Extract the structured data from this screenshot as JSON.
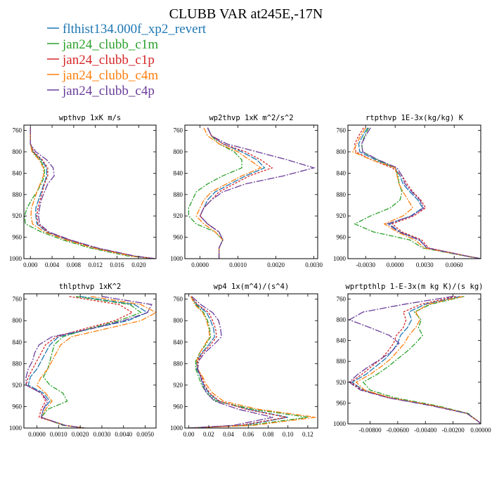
{
  "figure": {
    "title": "CLUBB VAR at245E,-17N",
    "legend": [
      {
        "name": "flthist134.000f_xp2_revert",
        "color": "#1f77b4"
      },
      {
        "name": "jan24_clubb_c1m",
        "color": "#2ca02c"
      },
      {
        "name": "jan24_clubb_c1p",
        "color": "#d62728"
      },
      {
        "name": "jan24_clubb_c4m",
        "color": "#ff7f0e"
      },
      {
        "name": "jan24_clubb_c4p",
        "color": "#6a3d9a"
      }
    ]
  },
  "chart_data": [
    {
      "type": "line",
      "title": "wpthvp 1xK m/s",
      "xlim": [
        -0.0012,
        0.0232
      ],
      "xticks": [
        0,
        0.004,
        0.008,
        0.012,
        0.016,
        0.02
      ],
      "xtick_labels": [
        "0.000",
        "0.004",
        "0.008",
        "0.012",
        "0.016",
        "0.020"
      ],
      "ylim": [
        750,
        1000
      ],
      "yticks": [
        760,
        800,
        840,
        880,
        920,
        960,
        1000
      ],
      "ytick_labels": [
        "760",
        "800",
        "840",
        "880",
        "920",
        "960",
        "1000"
      ],
      "levels": [
        755,
        770,
        785,
        800,
        815,
        830,
        845,
        860,
        875,
        890,
        905,
        920,
        935,
        950,
        965,
        980,
        995,
        1000
      ],
      "series": [
        {
          "color": "#1f77b4",
          "values": [
            0,
            0,
            0,
            0.0005,
            0.002,
            0.003,
            0.003,
            0.0025,
            0.002,
            0.0015,
            0.001,
            0.001,
            0.0012,
            0.003,
            0.007,
            0.012,
            0.019,
            0.023
          ]
        },
        {
          "color": "#2ca02c",
          "values": [
            0,
            0,
            0,
            0.0004,
            0.0018,
            0.0026,
            0.0026,
            0.002,
            0.0012,
            0.0002,
            -0.0006,
            -0.0011,
            -0.0009,
            0.002,
            0.006,
            0.011,
            0.018,
            0.023
          ]
        },
        {
          "color": "#d62728",
          "values": [
            0,
            0,
            0,
            0.0006,
            0.0022,
            0.0032,
            0.0032,
            0.0026,
            0.0022,
            0.0018,
            0.0014,
            0.0012,
            0.0014,
            0.0032,
            0.0072,
            0.0122,
            0.019,
            0.023
          ]
        },
        {
          "color": "#ff7f0e",
          "values": [
            0,
            0,
            0,
            0.0003,
            0.0016,
            0.0024,
            0.0024,
            0.0018,
            0.0012,
            0.0007,
            0.0002,
            0.0001,
            0.0004,
            0.0026,
            0.0066,
            0.0116,
            0.0186,
            0.023
          ]
        },
        {
          "color": "#6a3d9a",
          "values": [
            0,
            0,
            0,
            0.001,
            0.003,
            0.0042,
            0.0044,
            0.0032,
            0.0026,
            0.002,
            0.0017,
            0.0015,
            0.0017,
            0.0034,
            0.0074,
            0.0124,
            0.0192,
            0.023
          ]
        }
      ]
    },
    {
      "type": "line",
      "title": "wp2thvp 1xK m^2/s^2",
      "xlim": [
        -0.0004,
        0.0031
      ],
      "xticks": [
        0,
        0.001,
        0.002,
        0.003
      ],
      "xtick_labels": [
        "0.0000",
        "0.0010",
        "0.0020",
        "0.0030"
      ],
      "ylim": [
        750,
        1000
      ],
      "yticks": [
        760,
        800,
        840,
        880,
        920,
        960,
        1000
      ],
      "ytick_labels": [
        "760",
        "800",
        "840",
        "880",
        "920",
        "960",
        "1000"
      ],
      "levels": [
        755,
        770,
        785,
        800,
        815,
        830,
        845,
        860,
        875,
        890,
        905,
        920,
        935,
        950,
        965,
        980,
        995,
        1000
      ],
      "series": [
        {
          "color": "#1f77b4",
          "values": [
            0.0002,
            0.0003,
            0.0006,
            0.0011,
            0.0015,
            0.0017,
            0.0012,
            0.0008,
            0.0004,
            0.0002,
            0.0001,
            0.0,
            0.0002,
            0.0005,
            0.0006,
            0.0005,
            0.0005,
            0.0005
          ]
        },
        {
          "color": "#2ca02c",
          "values": [
            0.0002,
            0.0003,
            0.0005,
            0.0009,
            0.0011,
            0.0011,
            0.0006,
            0.0002,
            -0.0001,
            -0.0002,
            -0.0003,
            -0.0003,
            -0.0001,
            0.0004,
            0.0006,
            0.0005,
            0.0005,
            0.0005
          ]
        },
        {
          "color": "#d62728",
          "values": [
            0.0002,
            0.0003,
            0.0006,
            0.0012,
            0.0016,
            0.0019,
            0.0013,
            0.0009,
            0.0005,
            0.0003,
            0.0001,
            0.0,
            0.0002,
            0.0005,
            0.0006,
            0.0005,
            0.0005,
            0.0005
          ]
        },
        {
          "color": "#ff7f0e",
          "values": [
            0.0001,
            0.0002,
            0.0005,
            0.001,
            0.0013,
            0.0016,
            0.0011,
            0.0007,
            0.0003,
            0.0001,
            0.0,
            -0.0001,
            0.0001,
            0.0004,
            0.0006,
            0.0005,
            0.0005,
            0.0005
          ]
        },
        {
          "color": "#6a3d9a",
          "values": [
            0.0002,
            0.0003,
            0.0007,
            0.0015,
            0.0023,
            0.003,
            0.0022,
            0.0012,
            0.0006,
            0.0003,
            0.0001,
            0.0,
            0.0002,
            0.0005,
            0.0006,
            0.0005,
            0.0005,
            0.0005
          ]
        }
      ]
    },
    {
      "type": "line",
      "title": "rtpthvp 1E-3x(kg/kg) K",
      "xlim": [
        -0.0048,
        0.0087
      ],
      "xticks": [
        -0.003,
        0,
        0.003,
        0.006
      ],
      "xtick_labels": [
        "-0.0030",
        "0.0000",
        "0.0030",
        "0.0060"
      ],
      "ylim": [
        750,
        1000
      ],
      "yticks": [
        760,
        800,
        840,
        880,
        920,
        960,
        1000
      ],
      "ytick_labels": [
        "760",
        "800",
        "840",
        "880",
        "920",
        "960",
        "1000"
      ],
      "levels": [
        755,
        770,
        785,
        800,
        815,
        830,
        845,
        860,
        875,
        890,
        905,
        920,
        935,
        950,
        965,
        980,
        995,
        1000
      ],
      "series": [
        {
          "color": "#1f77b4",
          "values": [
            -0.0028,
            -0.0033,
            -0.0037,
            -0.0036,
            -0.002,
            0.0,
            0.0005,
            0.0008,
            0.0015,
            0.0023,
            0.0028,
            0.0016,
            -0.0006,
            0.0005,
            0.0025,
            0.0032,
            0.0072,
            0.0087
          ]
        },
        {
          "color": "#2ca02c",
          "values": [
            -0.0027,
            -0.0031,
            -0.0034,
            -0.0033,
            -0.0018,
            0.0,
            0.0003,
            0.0004,
            0.0007,
            0.0005,
            -0.0005,
            -0.0025,
            -0.0041,
            -0.0022,
            0.0015,
            0.0028,
            0.0071,
            0.0087
          ]
        },
        {
          "color": "#d62728",
          "values": [
            -0.0032,
            -0.0037,
            -0.0041,
            -0.004,
            -0.0024,
            -0.0003,
            0.0007,
            0.0012,
            0.0018,
            0.0026,
            0.0031,
            0.0019,
            -0.0003,
            0.0007,
            0.0027,
            0.0034,
            0.0073,
            0.0087
          ]
        },
        {
          "color": "#ff7f0e",
          "values": [
            -0.003,
            -0.0035,
            -0.0039,
            -0.0043,
            -0.0024,
            0.0,
            0.0002,
            0.0004,
            0.0008,
            0.0013,
            0.0018,
            0.0008,
            -0.0011,
            0.0002,
            0.002,
            0.003,
            0.0072,
            0.0087
          ]
        },
        {
          "color": "#6a3d9a",
          "values": [
            -0.0025,
            -0.003,
            -0.0034,
            -0.0033,
            -0.0017,
            0.0002,
            0.0007,
            0.001,
            0.0017,
            0.0025,
            0.0029,
            0.0017,
            -0.0008,
            0.0004,
            0.0024,
            0.0033,
            0.0072,
            0.0087
          ]
        }
      ]
    },
    {
      "type": "line",
      "title": "thlpthvp 1xK^2",
      "xlim": [
        -0.0006,
        0.0055
      ],
      "xticks": [
        0,
        0.001,
        0.002,
        0.003,
        0.004,
        0.005
      ],
      "xtick_labels": [
        "0.0000",
        "0.0010",
        "0.0020",
        "0.0030",
        "0.0040",
        "0.0050"
      ],
      "ylim": [
        750,
        1000
      ],
      "yticks": [
        760,
        800,
        840,
        880,
        920,
        960,
        1000
      ],
      "ytick_labels": [
        "760",
        "800",
        "840",
        "880",
        "920",
        "960",
        "1000"
      ],
      "levels": [
        755,
        770,
        785,
        800,
        815,
        830,
        845,
        860,
        875,
        890,
        905,
        920,
        935,
        950,
        965,
        980,
        995,
        1000
      ],
      "series": [
        {
          "color": "#1f77b4",
          "values": [
            0.002,
            0.0045,
            0.0051,
            0.0042,
            0.0025,
            0.001,
            0.0006,
            0.0004,
            0.0002,
            0.0,
            -0.0003,
            -0.0004,
            0.0003,
            0.0006,
            0.0003,
            0.0002,
            0.0013,
            0.0022
          ]
        },
        {
          "color": "#2ca02c",
          "values": [
            0.0018,
            0.0043,
            0.0048,
            0.0038,
            0.0024,
            0.0012,
            0.0008,
            0.0007,
            0.0006,
            0.0005,
            0.0003,
            0.0006,
            0.0012,
            0.0014,
            0.0005,
            0.0002,
            0.0012,
            0.0022
          ]
        },
        {
          "color": "#d62728",
          "values": [
            0.0015,
            0.0038,
            0.0044,
            0.0036,
            0.0022,
            0.0009,
            0.0004,
            0.0002,
            0.0,
            -0.0002,
            -0.0004,
            -0.0005,
            0.0002,
            0.0004,
            0.0002,
            0.0001,
            0.0013,
            0.0022
          ]
        },
        {
          "color": "#ff7f0e",
          "values": [
            0.0025,
            0.0048,
            0.0055,
            0.0048,
            0.0032,
            0.0016,
            0.0011,
            0.0009,
            0.0007,
            0.0005,
            0.0002,
            0.0,
            0.0004,
            0.0007,
            0.0004,
            0.0002,
            0.0013,
            0.0022
          ]
        },
        {
          "color": "#6a3d9a",
          "values": [
            0.003,
            0.0053,
            0.0051,
            0.004,
            0.0025,
            0.0007,
            0.0001,
            -0.0001,
            -0.0002,
            -0.0004,
            -0.0005,
            -0.0005,
            0.0002,
            0.0005,
            0.0003,
            0.0002,
            0.0013,
            0.0022
          ]
        }
      ]
    },
    {
      "type": "line",
      "title": "wp4 1x(m^4)/(s^4)",
      "xlim": [
        -0.004,
        0.13
      ],
      "xticks": [
        0,
        0.02,
        0.04,
        0.06,
        0.08,
        0.1,
        0.12
      ],
      "xtick_labels": [
        "0.00",
        "0.02",
        "0.04",
        "0.06",
        "0.08",
        "0.10",
        "0.12"
      ],
      "ylim": [
        750,
        1000
      ],
      "yticks": [
        760,
        800,
        840,
        880,
        920,
        960,
        1000
      ],
      "ytick_labels": [
        "760",
        "800",
        "840",
        "880",
        "920",
        "960",
        "1000"
      ],
      "levels": [
        755,
        770,
        785,
        800,
        815,
        830,
        845,
        860,
        875,
        890,
        905,
        920,
        935,
        950,
        965,
        980,
        995,
        1000
      ],
      "series": [
        {
          "color": "#1f77b4",
          "values": [
            0.002,
            0.008,
            0.018,
            0.022,
            0.025,
            0.026,
            0.02,
            0.013,
            0.008,
            0.008,
            0.012,
            0.015,
            0.02,
            0.03,
            0.06,
            0.1,
            0.055,
            0.0
          ]
        },
        {
          "color": "#2ca02c",
          "values": [
            0.002,
            0.007,
            0.015,
            0.019,
            0.021,
            0.022,
            0.017,
            0.011,
            0.007,
            0.007,
            0.01,
            0.013,
            0.018,
            0.028,
            0.065,
            0.12,
            0.06,
            0.0
          ]
        },
        {
          "color": "#d62728",
          "values": [
            0.002,
            0.009,
            0.02,
            0.024,
            0.027,
            0.028,
            0.022,
            0.014,
            0.009,
            0.009,
            0.013,
            0.016,
            0.021,
            0.031,
            0.058,
            0.098,
            0.052,
            0.0
          ]
        },
        {
          "color": "#ff7f0e",
          "values": [
            0.002,
            0.006,
            0.014,
            0.018,
            0.02,
            0.021,
            0.016,
            0.011,
            0.008,
            0.009,
            0.014,
            0.018,
            0.024,
            0.035,
            0.07,
            0.128,
            0.065,
            0.0
          ]
        },
        {
          "color": "#6a3d9a",
          "values": [
            0.003,
            0.012,
            0.024,
            0.03,
            0.032,
            0.033,
            0.025,
            0.016,
            0.01,
            0.009,
            0.012,
            0.014,
            0.018,
            0.026,
            0.05,
            0.085,
            0.045,
            0.0
          ]
        }
      ]
    },
    {
      "type": "line",
      "title": "wprtpthlp 1-E-3x(m kg K)/(s kg)",
      "xlim": [
        -0.0096,
        0.0
      ],
      "xticks": [
        -0.008,
        -0.006,
        -0.004,
        -0.002,
        0
      ],
      "xtick_labels": [
        "-0.00800",
        "-0.00600",
        "-0.00400",
        "-0.00200",
        "0.00000"
      ],
      "ylim": [
        750,
        1000
      ],
      "yticks": [
        760,
        800,
        840,
        880,
        920,
        960,
        1000
      ],
      "ytick_labels": [
        "760",
        "800",
        "840",
        "880",
        "920",
        "960",
        "1000"
      ],
      "levels": [
        755,
        770,
        785,
        800,
        815,
        830,
        845,
        860,
        875,
        890,
        905,
        920,
        935,
        950,
        965,
        980,
        995,
        1000
      ],
      "series": [
        {
          "color": "#1f77b4",
          "values": [
            -0.0015,
            -0.004,
            -0.0052,
            -0.005,
            -0.0053,
            -0.0058,
            -0.006,
            -0.0064,
            -0.0069,
            -0.0076,
            -0.0083,
            -0.0093,
            -0.0085,
            -0.0066,
            -0.0035,
            -0.001,
            -0.0002,
            0.0
          ]
        },
        {
          "color": "#2ca02c",
          "values": [
            -0.0012,
            -0.0036,
            -0.0048,
            -0.0043,
            -0.0045,
            -0.0042,
            -0.0047,
            -0.0053,
            -0.006,
            -0.0067,
            -0.0075,
            -0.0085,
            -0.008,
            -0.0062,
            -0.0032,
            -0.0009,
            -0.0002,
            0.0
          ]
        },
        {
          "color": "#d62728",
          "values": [
            -0.0018,
            -0.0043,
            -0.0056,
            -0.0054,
            -0.0056,
            -0.0061,
            -0.0063,
            -0.0067,
            -0.0072,
            -0.0079,
            -0.0086,
            -0.0094,
            -0.0086,
            -0.0066,
            -0.0035,
            -0.001,
            -0.0002,
            0.0
          ]
        },
        {
          "color": "#ff7f0e",
          "values": [
            -0.0013,
            -0.0038,
            -0.0047,
            -0.0044,
            -0.0047,
            -0.0052,
            -0.0055,
            -0.006,
            -0.0065,
            -0.0072,
            -0.008,
            -0.009,
            -0.0084,
            -0.0065,
            -0.0034,
            -0.001,
            -0.0002,
            0.0
          ]
        },
        {
          "color": "#6a3d9a",
          "values": [
            -0.002,
            -0.0055,
            -0.0085,
            -0.0095,
            -0.008,
            -0.0066,
            -0.0059,
            -0.0064,
            -0.0072,
            -0.0081,
            -0.0089,
            -0.0095,
            -0.0087,
            -0.0067,
            -0.0036,
            -0.001,
            -0.0002,
            0.0
          ]
        }
      ]
    }
  ]
}
